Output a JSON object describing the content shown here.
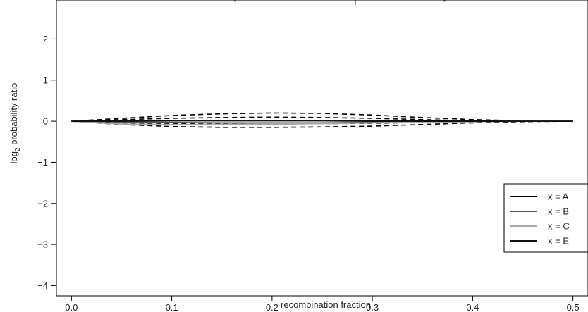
{
  "chart_data": {
    "type": "line",
    "title": "",
    "title_fragment": "{",
    "title_fragment_end": "}",
    "xlabel": "recombination fraction",
    "ylabel_main": "log",
    "ylabel_sub": "2",
    "ylabel_rest": " probability ratio",
    "xlim": [
      -0.015,
      0.515
    ],
    "ylim": [
      -4.25,
      2.95
    ],
    "xticks": [
      0.0,
      0.1,
      0.2,
      0.3,
      0.4,
      0.5
    ],
    "xtick_labels": [
      "0.0",
      "0.1",
      "0.2",
      "0.3",
      "0.4",
      "0.5"
    ],
    "yticks": [
      2,
      1,
      0,
      -1,
      -2,
      -3,
      -4
    ],
    "ytick_labels": [
      "2",
      "1",
      "0",
      "−1",
      "−2",
      "−3",
      "−4"
    ],
    "x": [
      0.0,
      0.05,
      0.1,
      0.15,
      0.2,
      0.25,
      0.3,
      0.35,
      0.4,
      0.45,
      0.5
    ],
    "series": [
      {
        "name": "x =  A",
        "color": "#000000",
        "dash": "solid",
        "values": [
          0.0,
          0.01,
          0.02,
          0.02,
          0.02,
          0.02,
          0.02,
          0.01,
          0.01,
          0.0,
          0.0
        ]
      },
      {
        "name": "x =  B",
        "color": "#555555",
        "dash": "solid",
        "values": [
          0.0,
          -0.02,
          -0.03,
          -0.04,
          -0.04,
          -0.04,
          -0.03,
          -0.02,
          -0.01,
          0.0,
          0.0
        ]
      },
      {
        "name": "x =  C",
        "color": "#aaaaaa",
        "dash": "solid",
        "values": [
          0.0,
          -0.07,
          -0.08,
          -0.08,
          -0.07,
          -0.06,
          -0.04,
          -0.02,
          -0.01,
          0.0,
          0.0
        ]
      },
      {
        "name": "x =  E",
        "color": "#111111",
        "dash": "solid",
        "values": [
          0.0,
          0.0,
          0.01,
          0.01,
          0.01,
          0.01,
          0.0,
          0.0,
          0.0,
          0.0,
          0.0
        ]
      },
      {
        "name": "",
        "color": "#000000",
        "dash": "dashed",
        "values": [
          0.0,
          0.07,
          0.14,
          0.18,
          0.2,
          0.19,
          0.15,
          0.09,
          0.04,
          0.01,
          0.0
        ]
      },
      {
        "name": "",
        "color": "#000000",
        "dash": "dashed",
        "values": [
          0.0,
          -0.08,
          -0.13,
          -0.15,
          -0.15,
          -0.14,
          -0.12,
          -0.08,
          -0.04,
          -0.01,
          0.0
        ]
      },
      {
        "name": "",
        "color": "#000000",
        "dash": "dashed",
        "values": [
          0.0,
          0.04,
          0.07,
          0.09,
          0.1,
          0.09,
          0.07,
          0.04,
          0.01,
          0.0,
          0.0
        ]
      },
      {
        "name": "",
        "color": "#000000",
        "dash": "dashed",
        "values": [
          0.0,
          -0.04,
          -0.06,
          -0.07,
          -0.07,
          -0.06,
          -0.05,
          -0.03,
          -0.01,
          0.0,
          0.0
        ]
      }
    ],
    "legend_position": "bottom-right",
    "grid": false
  }
}
